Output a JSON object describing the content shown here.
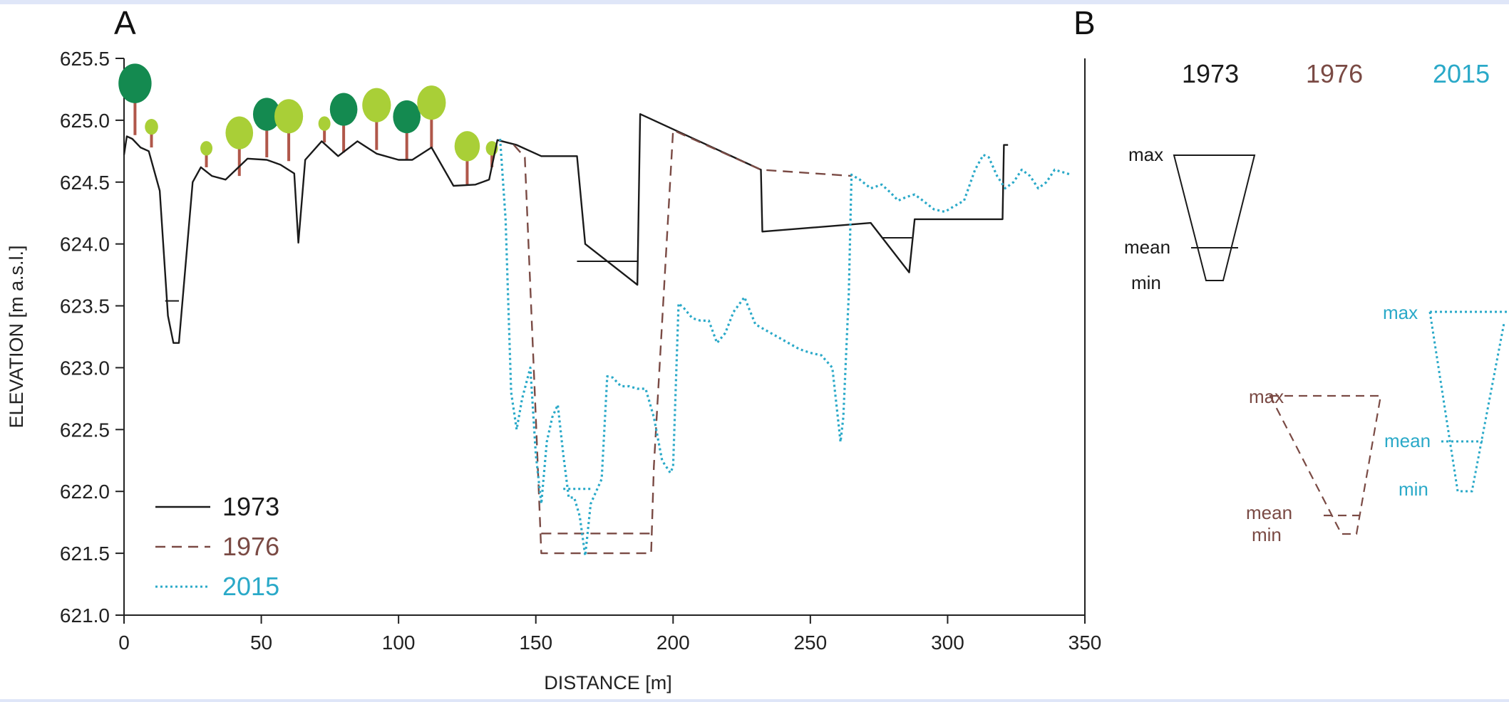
{
  "panels": {
    "a": "A",
    "b": "B"
  },
  "colors": {
    "s1973": "#1a1a1a",
    "s1976": "#7a4a44",
    "s2015": "#2aa9c8",
    "tree_dark": "#148a50",
    "tree_light": "#a9cf37",
    "trunk": "#b0574a"
  },
  "chart_data": {
    "type": "line",
    "title": "",
    "xlabel": "DISTANCE  [m]",
    "ylabel": "ELEVATION  [m a.s.l.]",
    "xlim": [
      0,
      350
    ],
    "ylim": [
      621.0,
      625.5
    ],
    "xticks": [
      0,
      50,
      100,
      150,
      200,
      250,
      300,
      350
    ],
    "yticks": [
      "621.0",
      "621.5",
      "622.0",
      "622.5",
      "623.0",
      "623.5",
      "624.0",
      "624.5",
      "625.0",
      "625.5"
    ],
    "legend_position": "bottom-left",
    "series": [
      {
        "name": "1973",
        "style": "solid",
        "x": [
          0,
          1,
          3,
          6,
          9,
          13,
          16,
          18,
          20,
          25,
          28,
          32,
          37,
          45,
          52,
          57,
          62,
          63.5,
          66,
          72,
          78,
          85,
          92,
          100,
          105,
          112,
          120,
          128,
          133,
          136,
          143,
          152,
          165,
          168,
          187,
          188,
          232,
          232.5,
          272,
          286,
          288,
          320,
          320.5,
          322
        ],
        "y": [
          624.72,
          624.87,
          624.85,
          624.78,
          624.75,
          624.43,
          623.42,
          623.2,
          623.2,
          624.5,
          624.62,
          624.55,
          624.52,
          624.69,
          624.68,
          624.64,
          624.57,
          624.01,
          624.68,
          624.83,
          624.71,
          624.83,
          624.73,
          624.68,
          624.68,
          624.78,
          624.47,
          624.48,
          624.52,
          624.84,
          624.8,
          624.71,
          624.71,
          624.0,
          623.67,
          625.05,
          624.6,
          624.1,
          624.17,
          623.77,
          624.2,
          624.2,
          624.8,
          624.8
        ]
      },
      {
        "name": "1976",
        "style": "dashed",
        "x": [
          142,
          146,
          150,
          152,
          192,
          193,
          200,
          232,
          265
        ],
        "y": [
          624.8,
          624.7,
          622.6,
          621.5,
          621.5,
          622.2,
          624.92,
          624.6,
          624.55
        ],
        "segments": [
          {
            "x": [
              152,
              192
            ],
            "y": [
              621.66,
              621.66
            ]
          }
        ]
      },
      {
        "name": "2015",
        "style": "dotted",
        "x": [
          137,
          139,
          141,
          143,
          145,
          148,
          150,
          152,
          154,
          156,
          158,
          160,
          162,
          164,
          166,
          168,
          170,
          172,
          174,
          176,
          178,
          181,
          184,
          187,
          190,
          193,
          196,
          199,
          200,
          202,
          204,
          207,
          210,
          213,
          216,
          219,
          222,
          226,
          230,
          234,
          238,
          242,
          246,
          250,
          254,
          258,
          261,
          262,
          264,
          265,
          268,
          272,
          276,
          279,
          282,
          285,
          288,
          291,
          295,
          299,
          302,
          306,
          310,
          313,
          315,
          318,
          321,
          324,
          327,
          330,
          333,
          336,
          339,
          342,
          345
        ],
        "y": [
          624.85,
          624.2,
          622.8,
          622.5,
          622.75,
          623.0,
          622.3,
          621.9,
          622.4,
          622.6,
          622.7,
          622.3,
          621.95,
          621.95,
          621.8,
          621.48,
          621.9,
          622.0,
          622.1,
          622.93,
          622.92,
          622.85,
          622.85,
          622.83,
          622.83,
          622.6,
          622.25,
          622.15,
          622.2,
          623.52,
          623.48,
          623.4,
          623.38,
          623.38,
          623.2,
          623.28,
          623.45,
          623.57,
          623.35,
          623.3,
          623.25,
          623.2,
          623.15,
          623.12,
          623.1,
          623.0,
          622.4,
          622.6,
          623.6,
          624.56,
          624.52,
          624.45,
          624.48,
          624.42,
          624.35,
          624.38,
          624.4,
          624.35,
          624.28,
          624.26,
          624.3,
          624.35,
          624.6,
          624.72,
          624.7,
          624.55,
          624.45,
          624.5,
          624.6,
          624.55,
          624.45,
          624.5,
          624.6,
          624.58,
          624.56
        ],
        "segments": [
          {
            "x": [
              160,
              170
            ],
            "y": [
              622.02,
              622.02
            ]
          }
        ]
      }
    ]
  },
  "legend": [
    {
      "label": "1973",
      "style": "solid"
    },
    {
      "label": "1976",
      "style": "dashed"
    },
    {
      "label": "2015",
      "style": "dotted"
    }
  ],
  "panel_b": {
    "years": [
      "1973",
      "1976",
      "2015"
    ],
    "stat_labels": {
      "max": "max",
      "mean": "mean",
      "min": "min"
    }
  }
}
